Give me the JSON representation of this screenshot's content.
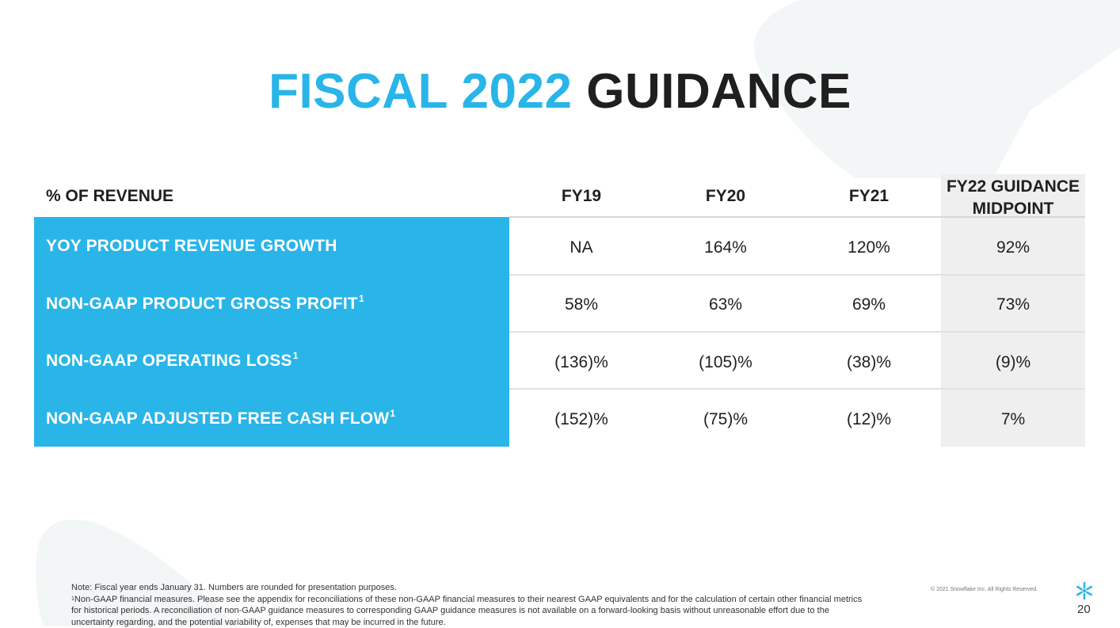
{
  "slide": {
    "title_accent": "FISCAL 2022",
    "title_rest": "GUIDANCE",
    "colors": {
      "accent": "#29B5E8",
      "text_dark": "#1f1f1f",
      "guidance_band": "#efefef"
    }
  },
  "table": {
    "row_header_label": "% OF REVENUE",
    "columns": [
      "FY19",
      "FY20",
      "FY21",
      "FY22 GUIDANCE MIDPOINT"
    ],
    "rows": [
      {
        "label": "YOY PRODUCT REVENUE GROWTH",
        "sup": "",
        "values": [
          "NA",
          "164%",
          "120%",
          "92%"
        ]
      },
      {
        "label": "NON-GAAP PRODUCT GROSS PROFIT",
        "sup": "1",
        "values": [
          "58%",
          "63%",
          "69%",
          "73%"
        ]
      },
      {
        "label": "NON-GAAP OPERATING LOSS",
        "sup": "1",
        "values": [
          "(136)%",
          "(105)%",
          "(38)%",
          "(9)%"
        ]
      },
      {
        "label": "NON-GAAP ADJUSTED FREE CASH FLOW",
        "sup": "1",
        "values": [
          "(152)%",
          "(75)%",
          "(12)%",
          "7%"
        ]
      }
    ]
  },
  "footer": {
    "note": "Note: Fiscal year ends January 31. Numbers are rounded for presentation purposes.",
    "footnote_marker": "1",
    "footnote_text": "Non-GAAP financial measures. Please see the appendix for reconciliations of these non-GAAP financial measures to their nearest GAAP equivalents and for the calculation of certain other financial metrics for historical periods. A reconciliation of non-GAAP guidance measures to corresponding GAAP guidance measures is not available on a forward-looking basis without unreasonable effort due to the uncertainty regarding, and the potential variability of, expenses that may be incurred in the future.",
    "copyright": "© 2021 Snowflake Inc. All Rights Reserved.",
    "page_number": "20",
    "logo_icon": "snowflake-logo-icon"
  }
}
